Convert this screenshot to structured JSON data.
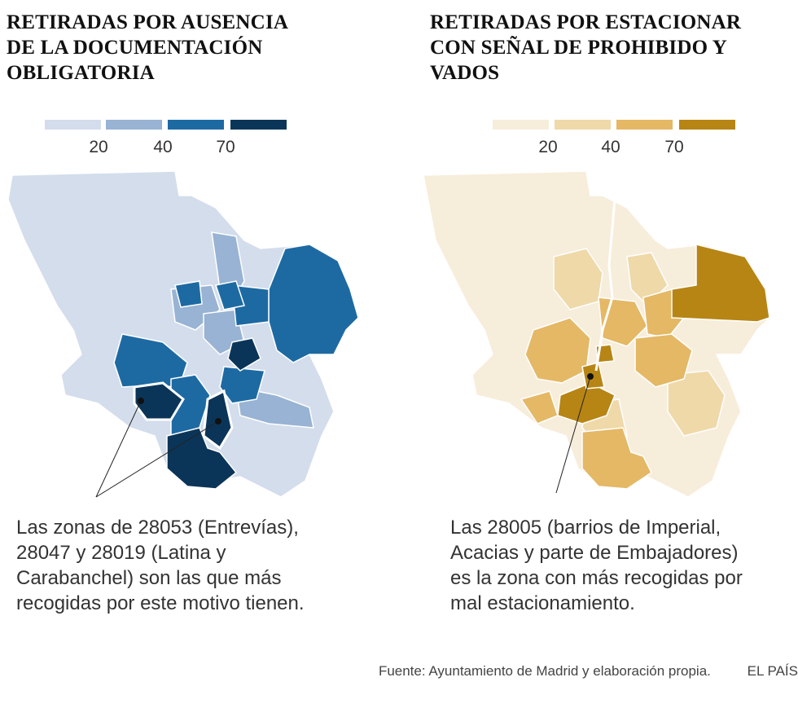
{
  "left": {
    "title": "RETIRADAS POR AUSENCIA\nDE LA DOCUMENTACIÓN\nOBLIGATORIA",
    "legend_colors": [
      "#d3ddec",
      "#98b3d3",
      "#1d6aa3",
      "#0b3558"
    ],
    "legend_ticks": [
      "20",
      "40",
      "70"
    ],
    "note": "Las zonas de 28053 (Entrevías),\n28047 y 28019 (Latina y\nCarabanchel) son las que más\nrecogidas por este motivo tienen."
  },
  "right": {
    "title": "RETIRADAS POR ESTACIONAR\nCON SEÑAL DE PROHIBIDO Y\nVADOS",
    "legend_colors": [
      "#f7eddb",
      "#efd9a9",
      "#e4b865",
      "#b78514"
    ],
    "legend_ticks": [
      "20",
      "40",
      "70"
    ],
    "note": "Las 28005 (barrios de Imperial,\nAcacias y parte de Embajadores)\nes la zona con más recogidas por\nmal estacionamiento."
  },
  "footer": {
    "source": "Fuente: Ayuntamiento de Madrid y elaboración propia.",
    "brand": "EL PAÍS"
  }
}
